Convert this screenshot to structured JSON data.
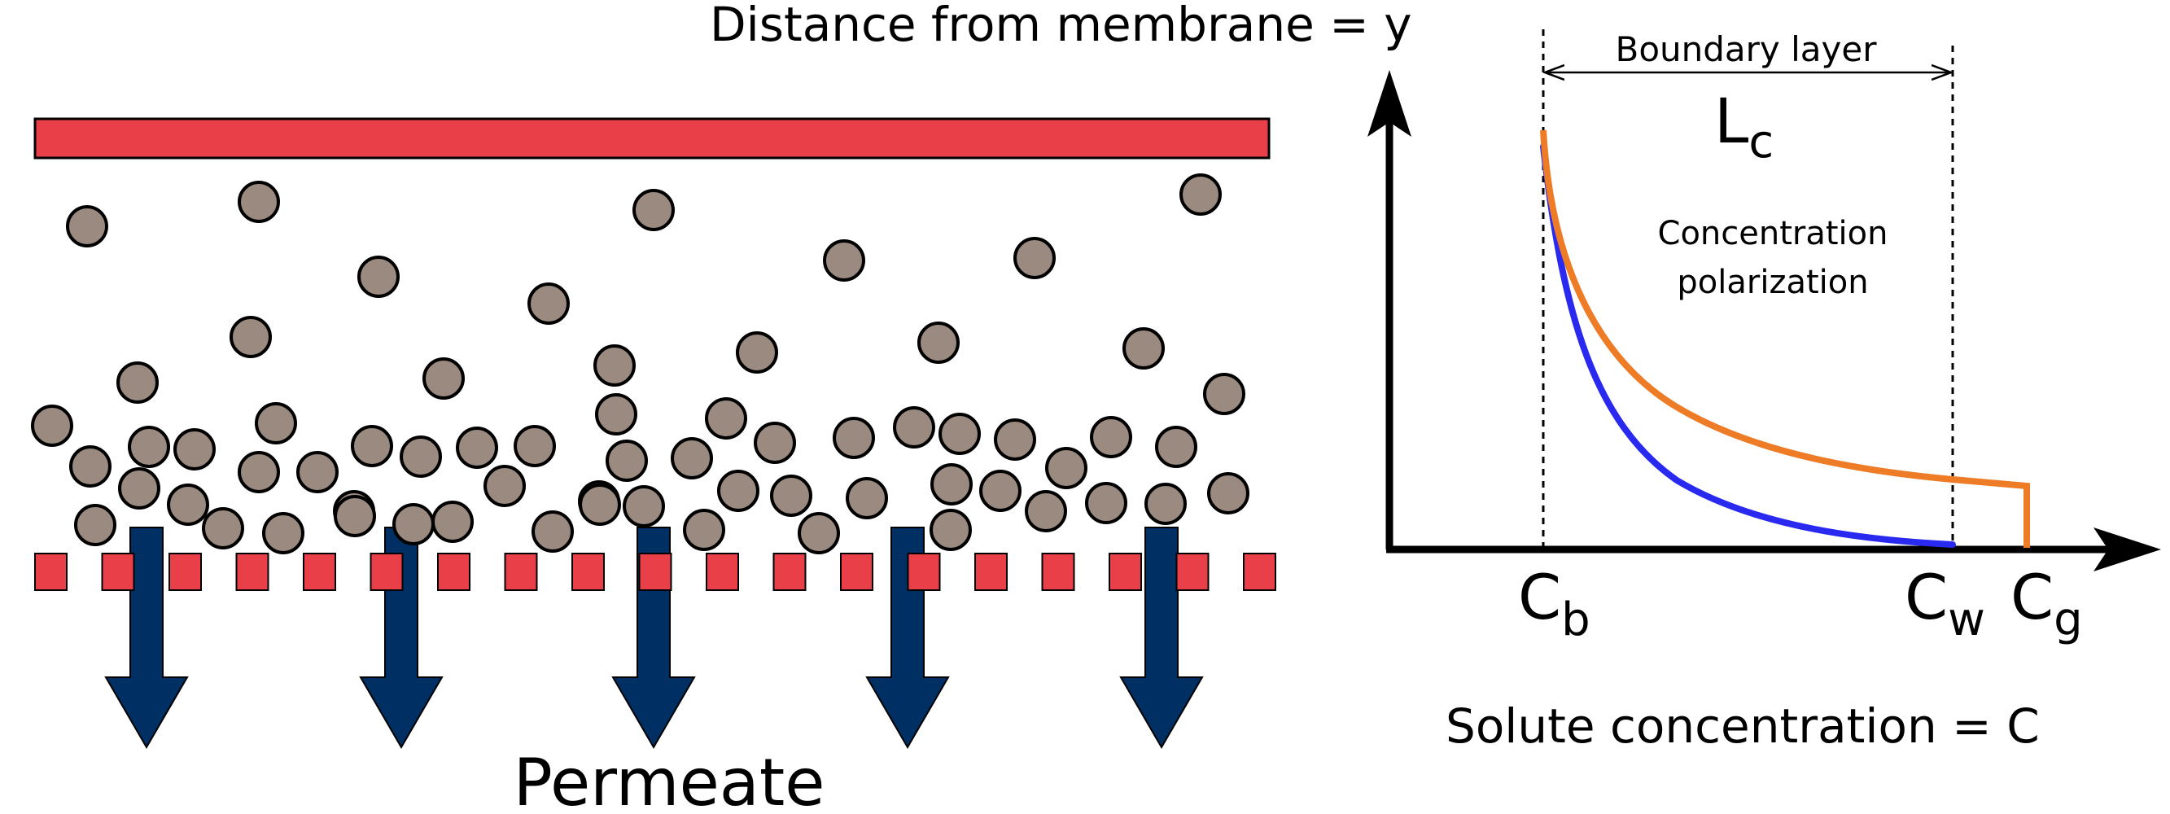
{
  "labels": {
    "permeate": "Permeate",
    "y_axis": "Distance from membrane = y",
    "x_axis": "Solute concentration = C",
    "boundary_layer": "Boundary layer",
    "lc_main": "L",
    "lc_sub": "c",
    "cp_line1": "Concentration",
    "cp_line2": "polarization",
    "cb_main": "C",
    "cb_sub": "b",
    "cw_main": "C",
    "cw_sub": "w",
    "cg_main": "C",
    "cg_sub": "g"
  },
  "colors": {
    "membrane_red": "#e83f48",
    "particle_fill": "#9a8a80",
    "arrow_navy": "#002f63",
    "curve_blue": "#2929f0",
    "curve_orange": "#ee7b26",
    "axis_black": "#000000"
  },
  "chart_data": {
    "type": "line",
    "title": "",
    "xlabel": "Solute concentration = C",
    "ylabel": "Distance from membrane = y",
    "x_markers": [
      "Cb",
      "Cw",
      "Cg"
    ],
    "annotations": [
      "Boundary layer",
      "Lc",
      "Concentration polarization"
    ],
    "series": [
      {
        "color": "#2929f0"
      },
      {
        "color": "#ee7b26"
      }
    ]
  }
}
